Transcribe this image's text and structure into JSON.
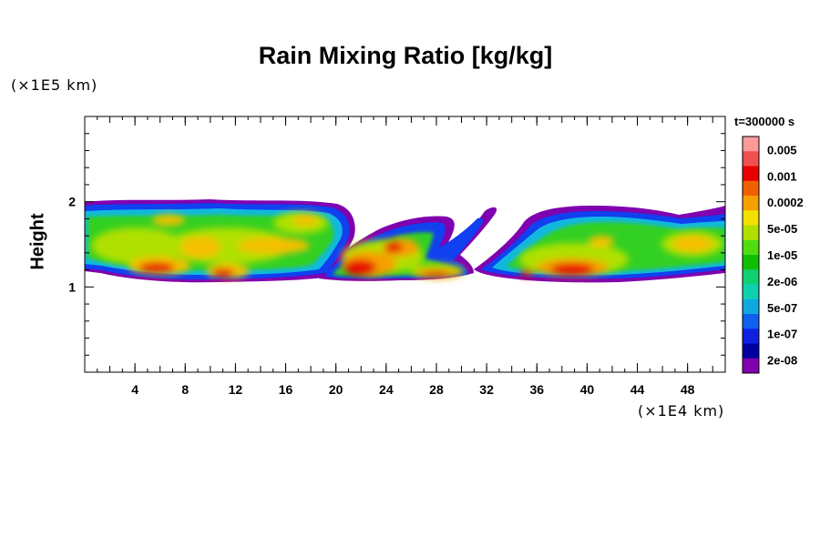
{
  "chart_data": {
    "type": "heatmap",
    "title": "Rain Mixing Ratio [kg/kg]",
    "ylabel": "Height",
    "xlabel": "",
    "x_scale_label": "(×1E4 km)",
    "y_scale_label": "(×1E5 km)",
    "time_label": "t=300000 s",
    "xlim": [
      0,
      51
    ],
    "ylim": [
      0,
      3
    ],
    "x_ticks": [
      4,
      8,
      12,
      16,
      20,
      24,
      28,
      32,
      36,
      40,
      44,
      48
    ],
    "y_ticks": [
      1,
      2
    ],
    "colorbar": {
      "levels": [
        "0.005",
        "0.001",
        "0.0002",
        "5e-05",
        "1e-05",
        "2e-06",
        "5e-07",
        "1e-07",
        "2e-08"
      ],
      "colors": [
        "#ff9a9a",
        "#f05050",
        "#e80000",
        "#f06000",
        "#f5a000",
        "#f2e000",
        "#b0e000",
        "#50dd10",
        "#10c000",
        "#10d070",
        "#10d0b0",
        "#10a8e0",
        "#1060f0",
        "#1020e0",
        "#0000a0",
        "#8000b0"
      ]
    },
    "fields": [
      {
        "x": [
          0,
          10
        ],
        "y": [
          1.1,
          1.95
        ],
        "level": "0.0002"
      },
      {
        "x": [
          6,
          14
        ],
        "y": [
          1.1,
          1.3
        ],
        "level": "0.001"
      },
      {
        "x": [
          19,
          27
        ],
        "y": [
          1.05,
          1.55
        ],
        "level": "0.001"
      },
      {
        "x": [
          36,
          42
        ],
        "y": [
          1.1,
          1.3
        ],
        "level": "0.001"
      },
      {
        "x": [
          46,
          51
        ],
        "y": [
          1.25,
          1.6
        ],
        "level": "0.0002"
      }
    ]
  }
}
